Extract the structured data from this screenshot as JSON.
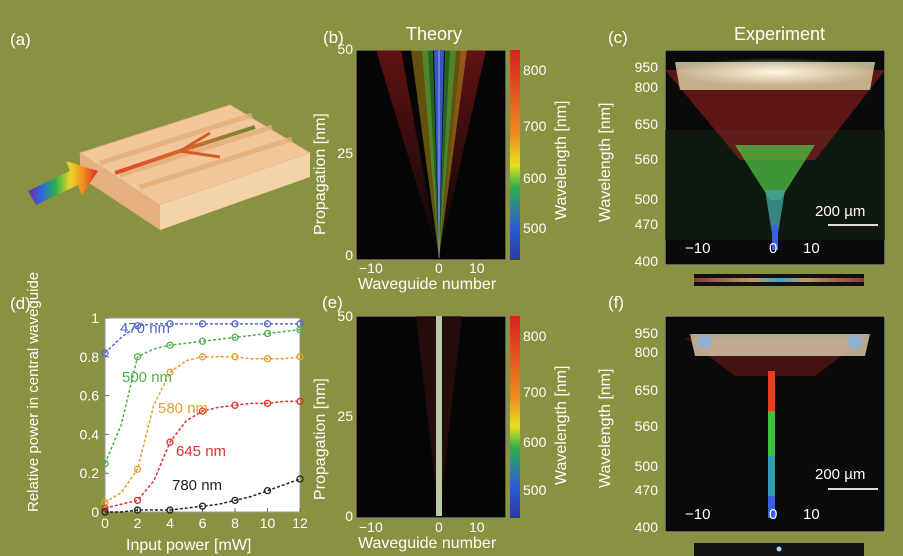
{
  "panels": {
    "a": {
      "label": "(a)"
    },
    "b": {
      "label": "(b)",
      "title": "Theory"
    },
    "c": {
      "label": "(c)",
      "title": "Experiment"
    },
    "d": {
      "label": "(d)"
    },
    "e": {
      "label": "(e)"
    },
    "f": {
      "label": "(f)"
    }
  },
  "theory": {
    "ylabel": "Propagation [nm]",
    "xlabel": "Waveguide number",
    "yticks": [
      "0",
      "25",
      "50"
    ],
    "xticks": [
      "−10",
      "0",
      "10"
    ],
    "colorbar_label": "Wavelength [nm]",
    "colorbar_ticks": [
      "500",
      "600",
      "700",
      "800"
    ]
  },
  "experiment": {
    "ylabel": "Wavelength [nm]",
    "yticks": [
      "400",
      "470",
      "500",
      "560",
      "650",
      "800",
      "950"
    ],
    "xticks": [
      "−10",
      "0",
      "10"
    ],
    "scalebar": "200 µm"
  },
  "chart_data": {
    "type": "line",
    "xlabel": "Input power [mW]",
    "ylabel": "Relative power in central waveguide",
    "xlim": [
      0,
      12
    ],
    "ylim": [
      0,
      1
    ],
    "xticks": [
      "0",
      "2",
      "4",
      "6",
      "8",
      "10",
      "12"
    ],
    "yticks": [
      "0",
      "0.2",
      "0.4",
      "0.6",
      "0.8",
      "1"
    ],
    "x": [
      0,
      1,
      2,
      3,
      4,
      5,
      6,
      7,
      8,
      9,
      10,
      11,
      12
    ],
    "series": [
      {
        "name": "470 nm",
        "color": "#5566c8",
        "values": [
          0.82,
          0.9,
          0.96,
          0.97,
          0.97,
          0.97,
          0.97,
          0.97,
          0.97,
          0.97,
          0.97,
          0.97,
          0.97
        ]
      },
      {
        "name": "500 nm",
        "color": "#4fae4f",
        "values": [
          0.25,
          0.45,
          0.8,
          0.84,
          0.86,
          0.87,
          0.88,
          0.89,
          0.9,
          0.91,
          0.92,
          0.93,
          0.94
        ]
      },
      {
        "name": "580 nm",
        "color": "#e89b2a",
        "values": [
          0.05,
          0.1,
          0.22,
          0.55,
          0.72,
          0.78,
          0.8,
          0.8,
          0.8,
          0.79,
          0.79,
          0.79,
          0.8
        ]
      },
      {
        "name": "645 nm",
        "color": "#e03030",
        "values": [
          0.02,
          0.04,
          0.06,
          0.16,
          0.36,
          0.47,
          0.52,
          0.54,
          0.55,
          0.56,
          0.56,
          0.57,
          0.57
        ]
      },
      {
        "name": "780 nm",
        "color": "#222222",
        "values": [
          0.0,
          0.0,
          0.01,
          0.01,
          0.01,
          0.02,
          0.03,
          0.04,
          0.06,
          0.08,
          0.11,
          0.14,
          0.17
        ]
      }
    ]
  }
}
